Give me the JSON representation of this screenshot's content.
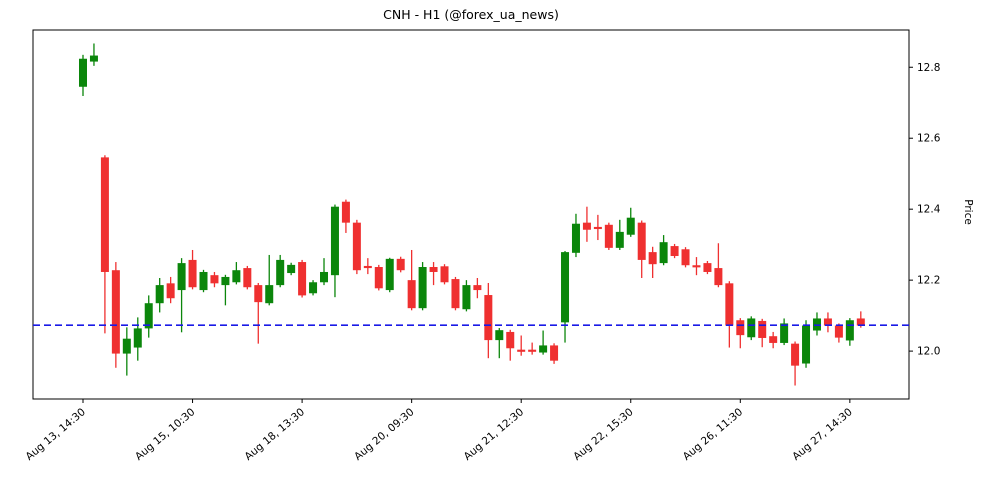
{
  "chart_data": {
    "type": "candlestick",
    "title": "CNH - H1 (@forex_ua_news)",
    "ylabel": "Price",
    "ylim": [
      11.865,
      12.905
    ],
    "yticks": [
      12.0,
      12.2,
      12.4,
      12.6,
      12.8
    ],
    "grid": false,
    "legend": "none",
    "xticks": [
      {
        "index": 0,
        "label": "Aug 13, 14:30"
      },
      {
        "index": 10,
        "label": "Aug 15, 10:30"
      },
      {
        "index": 20,
        "label": "Aug 18, 13:30"
      },
      {
        "index": 30,
        "label": "Aug 20, 09:30"
      },
      {
        "index": 40,
        "label": "Aug 21, 12:30"
      },
      {
        "index": 50,
        "label": "Aug 22, 15:30"
      },
      {
        "index": 60,
        "label": "Aug 26, 11:30"
      },
      {
        "index": 70,
        "label": "Aug 27, 14:30"
      }
    ],
    "hline": {
      "price": 12.073,
      "color": "#1a1ae6",
      "style": "dashed"
    },
    "colors": {
      "up": "#0b860b",
      "down": "#ef3030"
    },
    "candles_format": [
      "open",
      "high",
      "low",
      "close"
    ],
    "candles": [
      [
        12.745,
        12.835,
        12.719,
        12.824
      ],
      [
        12.816,
        12.867,
        12.804,
        12.833
      ],
      [
        12.546,
        12.552,
        12.05,
        12.223
      ],
      [
        12.228,
        12.251,
        11.953,
        11.993
      ],
      [
        11.993,
        12.067,
        11.931,
        12.035
      ],
      [
        12.01,
        12.095,
        11.973,
        12.064
      ],
      [
        12.064,
        12.157,
        12.038,
        12.135
      ],
      [
        12.135,
        12.206,
        12.109,
        12.186
      ],
      [
        12.191,
        12.209,
        12.135,
        12.149
      ],
      [
        12.172,
        12.262,
        12.053,
        12.248
      ],
      [
        12.257,
        12.285,
        12.174,
        12.18
      ],
      [
        12.172,
        12.229,
        12.166,
        12.223
      ],
      [
        12.214,
        12.223,
        12.18,
        12.191
      ],
      [
        12.186,
        12.215,
        12.129,
        12.209
      ],
      [
        12.194,
        12.251,
        12.188,
        12.228
      ],
      [
        12.234,
        12.24,
        12.174,
        12.18
      ],
      [
        12.186,
        12.192,
        12.021,
        12.138
      ],
      [
        12.135,
        12.271,
        12.129,
        12.186
      ],
      [
        12.186,
        12.271,
        12.18,
        12.257
      ],
      [
        12.22,
        12.249,
        12.214,
        12.243
      ],
      [
        12.251,
        12.257,
        12.151,
        12.157
      ],
      [
        12.163,
        12.2,
        12.157,
        12.194
      ],
      [
        12.194,
        12.262,
        12.186,
        12.223
      ],
      [
        12.214,
        12.413,
        12.152,
        12.407
      ],
      [
        12.421,
        12.427,
        12.333,
        12.362
      ],
      [
        12.362,
        12.37,
        12.217,
        12.228
      ],
      [
        12.24,
        12.262,
        12.217,
        12.234
      ],
      [
        12.237,
        12.243,
        12.171,
        12.177
      ],
      [
        12.172,
        12.263,
        12.166,
        12.26
      ],
      [
        12.26,
        12.266,
        12.222,
        12.228
      ],
      [
        12.2,
        12.285,
        12.115,
        12.121
      ],
      [
        12.121,
        12.251,
        12.115,
        12.237
      ],
      [
        12.237,
        12.251,
        12.186,
        12.223
      ],
      [
        12.239,
        12.245,
        12.188,
        12.194
      ],
      [
        12.203,
        12.209,
        12.115,
        12.121
      ],
      [
        12.118,
        12.2,
        12.112,
        12.186
      ],
      [
        12.186,
        12.206,
        12.149,
        12.172
      ],
      [
        12.158,
        12.192,
        11.98,
        12.031
      ],
      [
        12.031,
        12.065,
        11.98,
        12.059
      ],
      [
        12.054,
        12.06,
        11.973,
        12.008
      ],
      [
        12.004,
        12.044,
        11.987,
        11.998
      ],
      [
        12.004,
        12.024,
        11.99,
        11.998
      ],
      [
        11.996,
        12.058,
        11.99,
        12.016
      ],
      [
        12.016,
        12.022,
        11.964,
        11.973
      ],
      [
        12.081,
        12.282,
        12.024,
        12.279
      ],
      [
        12.277,
        12.387,
        12.265,
        12.359
      ],
      [
        12.362,
        12.407,
        12.308,
        12.342
      ],
      [
        12.35,
        12.384,
        12.313,
        12.344
      ],
      [
        12.356,
        12.362,
        12.285,
        12.291
      ],
      [
        12.291,
        12.37,
        12.285,
        12.336
      ],
      [
        12.328,
        12.404,
        12.322,
        12.376
      ],
      [
        12.362,
        12.368,
        12.206,
        12.257
      ],
      [
        12.279,
        12.294,
        12.206,
        12.245
      ],
      [
        12.248,
        12.327,
        12.242,
        12.307
      ],
      [
        12.296,
        12.302,
        12.262,
        12.268
      ],
      [
        12.287,
        12.293,
        12.236,
        12.242
      ],
      [
        12.242,
        12.265,
        12.214,
        12.236
      ],
      [
        12.248,
        12.254,
        12.217,
        12.223
      ],
      [
        12.234,
        12.304,
        12.18,
        12.186
      ],
      [
        12.191,
        12.197,
        12.01,
        12.072
      ],
      [
        12.087,
        12.093,
        12.008,
        12.045
      ],
      [
        12.039,
        12.098,
        12.031,
        12.092
      ],
      [
        12.085,
        12.091,
        12.011,
        12.037
      ],
      [
        12.042,
        12.054,
        12.008,
        12.023
      ],
      [
        12.023,
        12.092,
        12.017,
        12.078
      ],
      [
        12.021,
        12.027,
        11.903,
        11.959
      ],
      [
        11.965,
        12.087,
        11.953,
        12.072
      ],
      [
        12.058,
        12.109,
        12.044,
        12.092
      ],
      [
        12.092,
        12.109,
        12.053,
        12.072
      ],
      [
        12.072,
        12.078,
        12.024,
        12.038
      ],
      [
        12.03,
        12.093,
        12.015,
        12.087
      ],
      [
        12.092,
        12.112,
        12.066,
        12.072
      ]
    ]
  }
}
